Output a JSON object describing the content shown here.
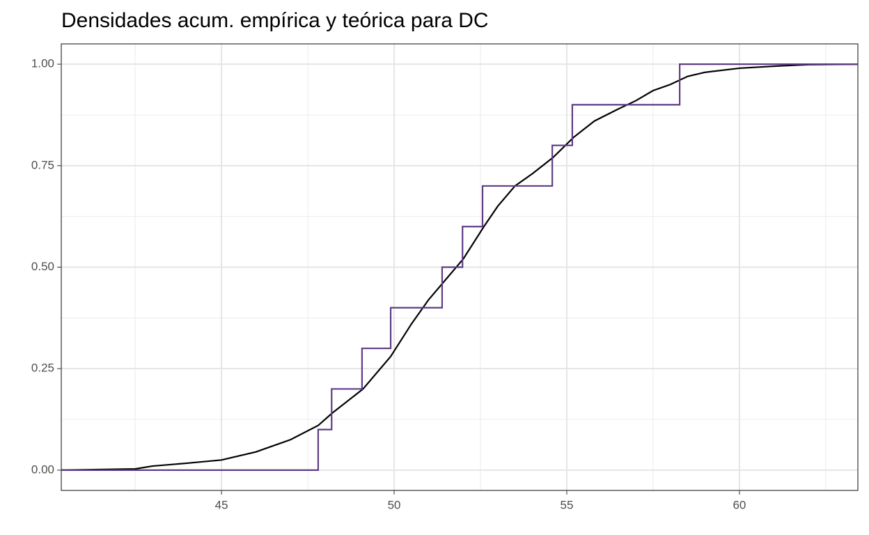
{
  "chart_data": {
    "type": "line",
    "title": "Densidades acum. empírica y teórica para DC",
    "xlim": [
      40.36,
      63.43
    ],
    "ylim": [
      -0.05,
      1.05
    ],
    "xticks": [
      45,
      50,
      55,
      60
    ],
    "yticks": [
      {
        "value": 0,
        "label": "0.00"
      },
      {
        "value": 0.25,
        "label": "0.25"
      },
      {
        "value": 0.5,
        "label": "0.50"
      },
      {
        "value": 0.75,
        "label": "0.75"
      },
      {
        "value": 1,
        "label": "1.00"
      }
    ],
    "grid": true,
    "minor_grid": true,
    "series": [
      {
        "color": "#5e3c85",
        "step": true,
        "x": [
          47.8,
          48.19,
          49.07,
          49.9,
          51.39,
          51.98,
          52.56,
          54.58,
          55.16,
          58.27
        ],
        "values": [
          0.1,
          0.2,
          0.3,
          0.4,
          0.5,
          0.6,
          0.7,
          0.8,
          0.9,
          1.0
        ]
      },
      {
        "color": "#000000",
        "step": false,
        "x": [
          40.36,
          42.5,
          43,
          44,
          45,
          46,
          47,
          47.8,
          48.2,
          49.1,
          49.9,
          50.5,
          51,
          51.4,
          52,
          52.6,
          53,
          53.5,
          54,
          54.6,
          55.2,
          55.8,
          56.5,
          57,
          57.5,
          58,
          58.5,
          59,
          60,
          61,
          62,
          63.43
        ],
        "values": [
          0,
          0.003,
          0.01,
          0.017,
          0.025,
          0.045,
          0.075,
          0.11,
          0.14,
          0.2,
          0.28,
          0.36,
          0.42,
          0.46,
          0.52,
          0.6,
          0.65,
          0.7,
          0.73,
          0.77,
          0.82,
          0.86,
          0.89,
          0.91,
          0.935,
          0.95,
          0.97,
          0.98,
          0.99,
          0.995,
          0.999,
          1
        ]
      }
    ]
  }
}
